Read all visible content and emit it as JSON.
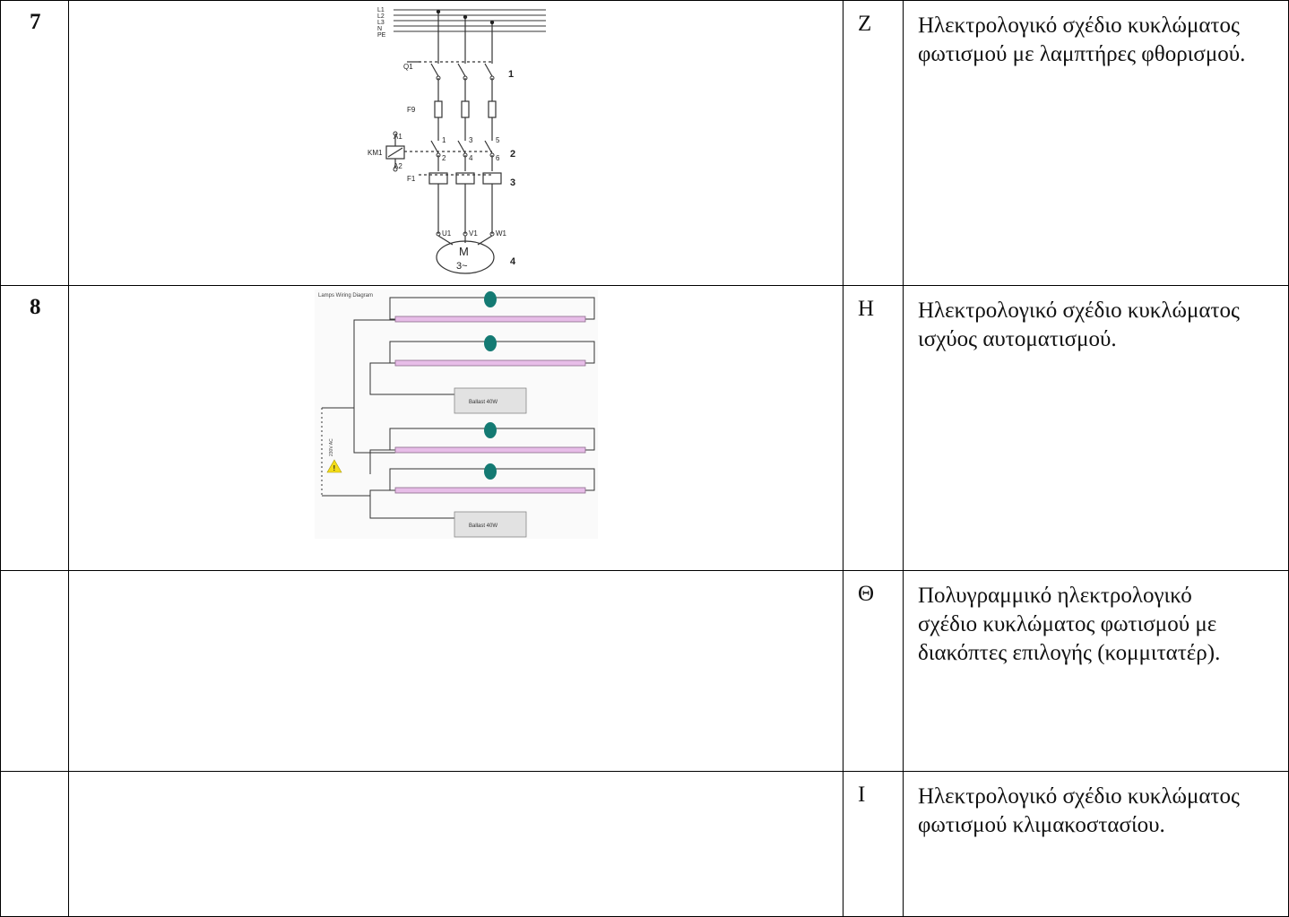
{
  "rows": [
    {
      "num": "7",
      "letter": "Z",
      "desc": "Ηλεκτρολογικό σχέδιο κυκλώματος φωτισμού με λαμπτήρες φθορισμού."
    },
    {
      "num": "8",
      "letter": "H",
      "desc": "Ηλεκτρολογικό σχέδιο κυκλώματος ισχύος αυτοματισμού."
    },
    {
      "num": "",
      "letter": "Θ",
      "desc": "Πολυγραμμικό ηλεκτρολογικό σχέδιο κυκλώματος φωτισμού με διακόπτες επιλογής (κομμιτατέρ)."
    },
    {
      "num": "",
      "letter": "I",
      "desc": "Ηλεκτρολογικό σχέδιο κυκλώματος φωτισμού κλιμακοστασίου."
    }
  ],
  "motor_diagram": {
    "bus_labels": [
      "L1",
      "L2",
      "L3",
      "N",
      "PE"
    ],
    "q1": "Q1",
    "f9": "F9",
    "km1": "KM1",
    "a1": "A1",
    "a2": "A2",
    "f1": "F1",
    "step1": "1",
    "step2": "2",
    "step3": "3",
    "step4": "4",
    "motor_letter": "M",
    "motor_phase": "3~",
    "u1": "U1",
    "v1": "V1",
    "w1": "W1",
    "c1": "1",
    "c2": "2",
    "c3": "3",
    "c4": "4",
    "c5": "5",
    "c6": "6"
  },
  "lamp_diagram": {
    "title": "Lamps Wiring Diagram",
    "ballast_1": "Ballast 40W",
    "ballast_2": "Ballast 40W",
    "voltage": "230V AC"
  },
  "colors": {
    "tube": "#e7bde8",
    "starter": "#147a73",
    "warning": "#f4dd18"
  }
}
